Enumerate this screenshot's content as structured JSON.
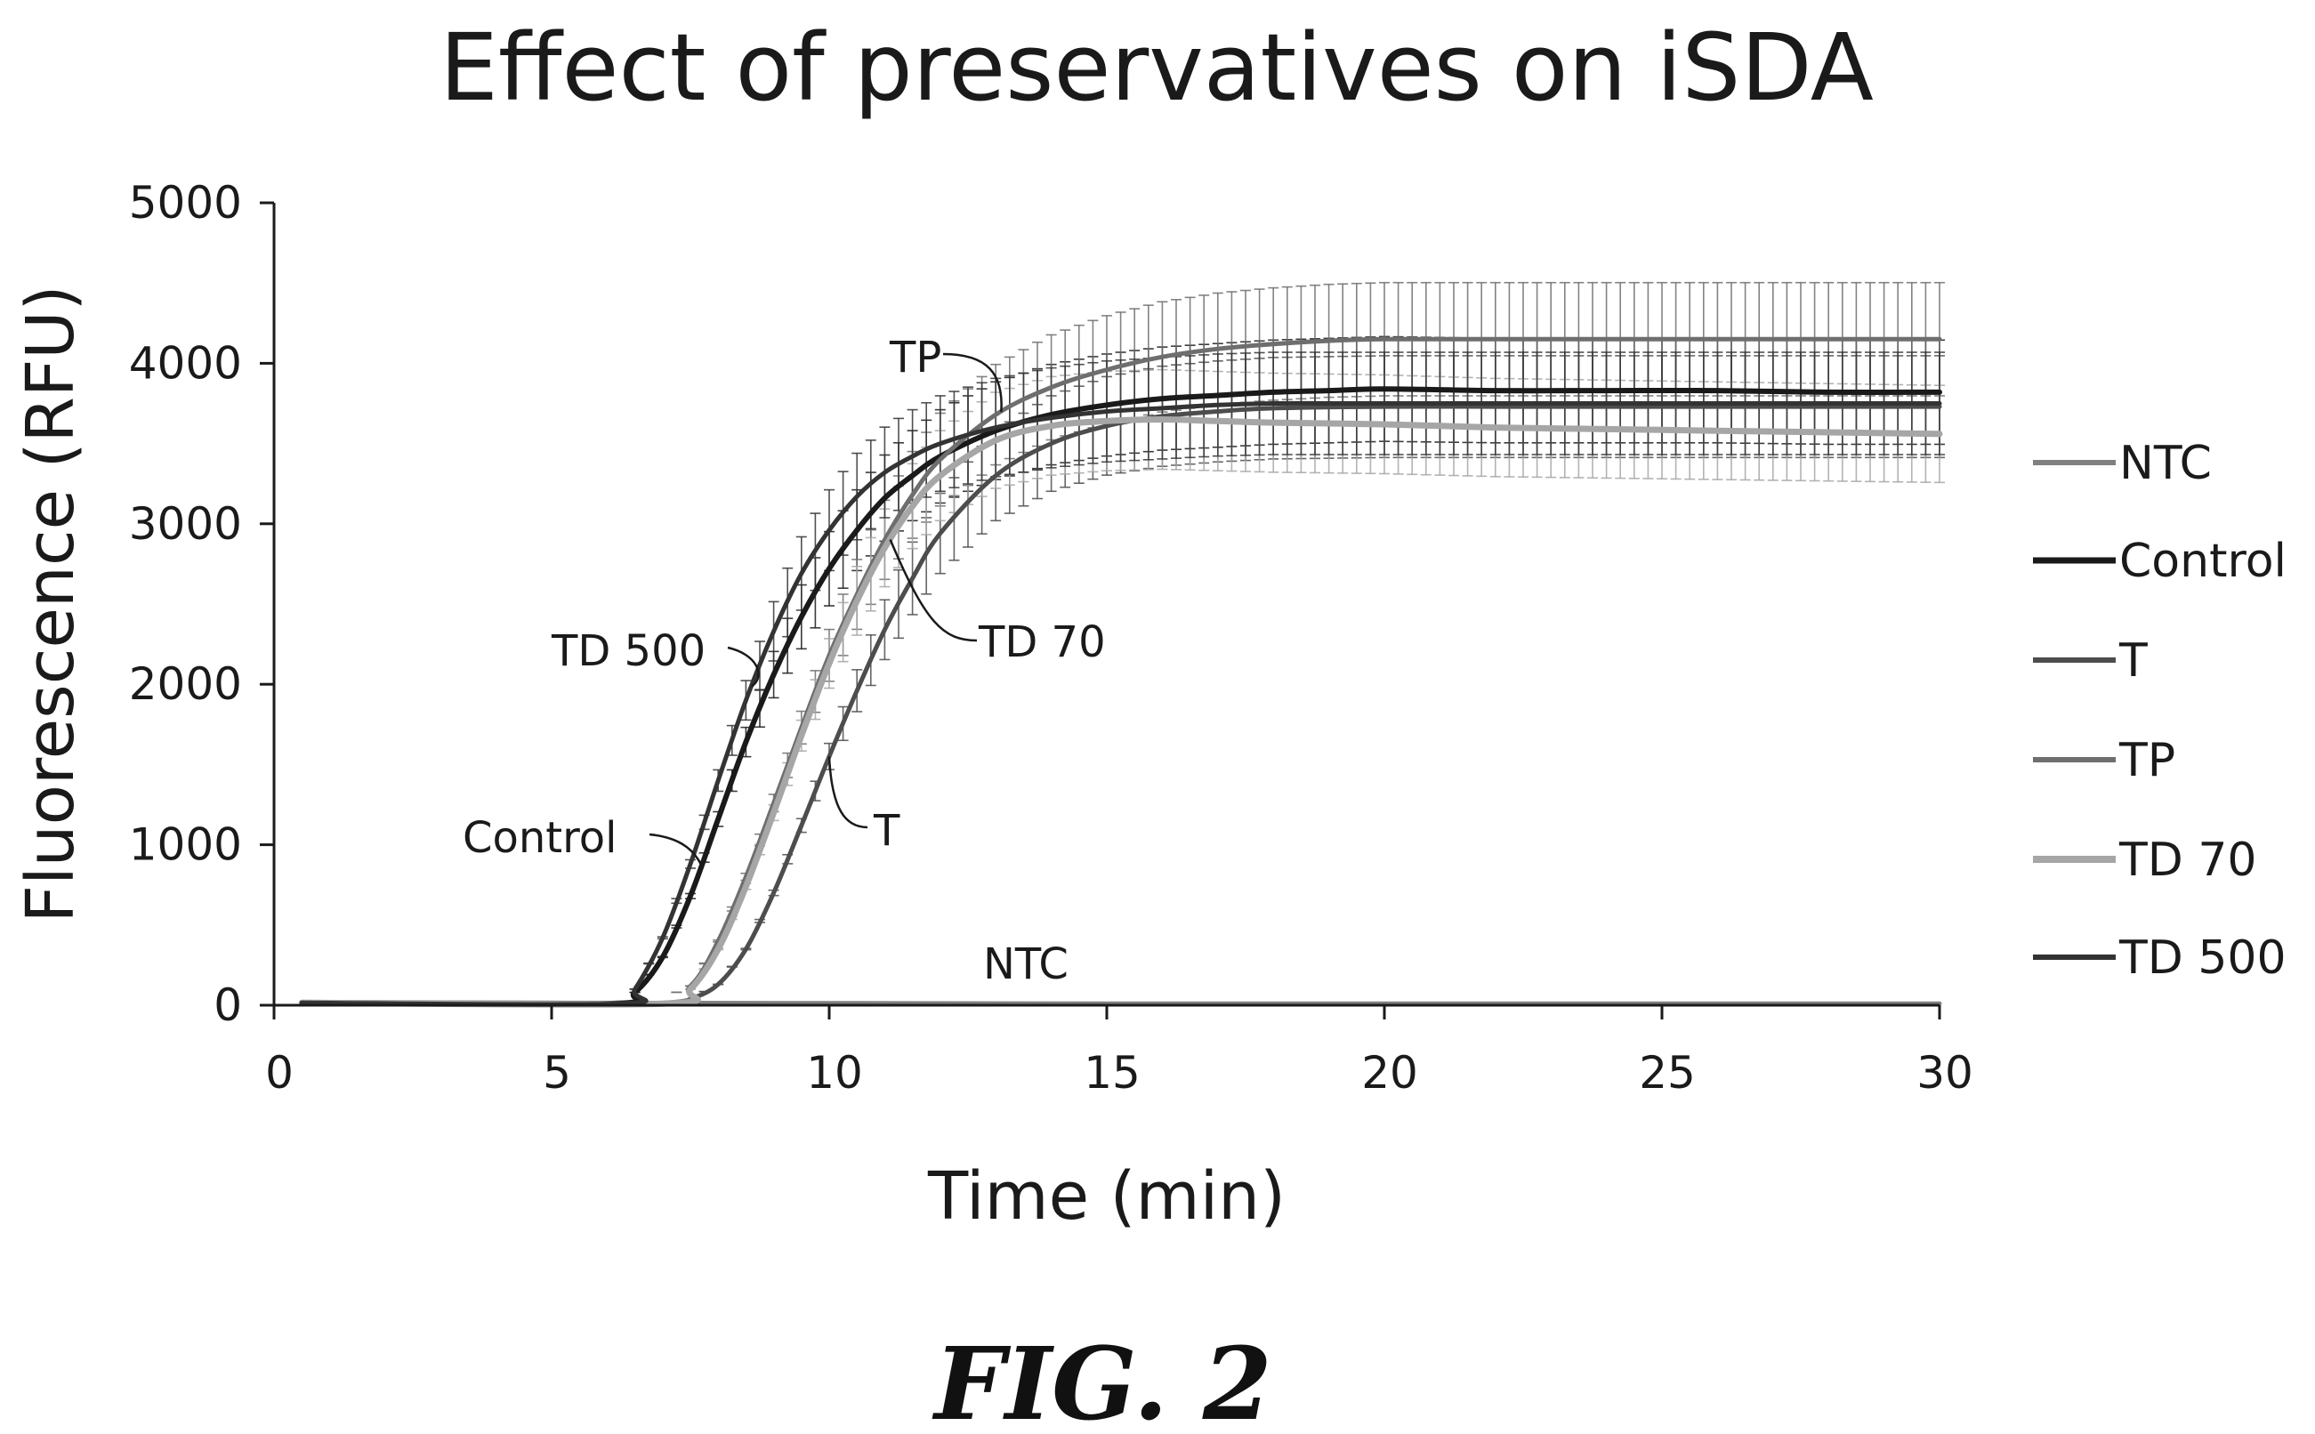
{
  "figure_label": "FIG. 2",
  "chart_data": {
    "type": "line",
    "title": "Effect of preservatives on iSDA",
    "xlabel": "Time (min)",
    "ylabel": "Fluorescence (RFU)",
    "xlim": [
      0,
      30
    ],
    "ylim": [
      0,
      5000
    ],
    "xticks": [
      0,
      5,
      10,
      15,
      20,
      25,
      30
    ],
    "yticks": [
      0,
      1000,
      2000,
      3000,
      4000,
      5000
    ],
    "grid": false,
    "legend_position": "right",
    "error_bars": true,
    "colors": {
      "NTC": "#808080",
      "Control": "#1a1a1a",
      "T": "#4d4d4d",
      "TP": "#6e6e6e",
      "TD 70": "#a6a6a6",
      "TD 500": "#333333"
    },
    "series": [
      {
        "name": "NTC",
        "x": [
          0.5,
          5,
          10,
          15,
          20,
          25,
          30
        ],
        "y": [
          20,
          15,
          12,
          10,
          10,
          10,
          10
        ]
      },
      {
        "name": "Control",
        "x": [
          6,
          6.5,
          7,
          7.5,
          8,
          8.5,
          9,
          9.5,
          10,
          10.5,
          11,
          11.5,
          12,
          13,
          14,
          15,
          16,
          17,
          18,
          19,
          20,
          22,
          24,
          26,
          28,
          30
        ],
        "y": [
          10,
          80,
          300,
          680,
          1160,
          1640,
          2060,
          2420,
          2720,
          2960,
          3160,
          3300,
          3420,
          3580,
          3680,
          3740,
          3780,
          3800,
          3820,
          3830,
          3840,
          3830,
          3830,
          3830,
          3820,
          3820
        ]
      },
      {
        "name": "T",
        "x": [
          7,
          7.5,
          8,
          8.5,
          9,
          9.5,
          10,
          10.5,
          11,
          11.5,
          12,
          13,
          14,
          15,
          16,
          17,
          18,
          20,
          22,
          24,
          26,
          28,
          30
        ],
        "y": [
          10,
          40,
          130,
          350,
          700,
          1120,
          1550,
          1960,
          2340,
          2660,
          2940,
          3300,
          3500,
          3610,
          3670,
          3700,
          3720,
          3730,
          3730,
          3730,
          3730,
          3730,
          3730
        ]
      },
      {
        "name": "TP",
        "x": [
          6.8,
          7.5,
          8,
          8.5,
          9,
          9.5,
          10,
          10.5,
          11,
          11.5,
          12,
          13,
          14,
          15,
          16,
          17,
          18,
          19,
          20,
          22,
          24,
          26,
          28,
          30
        ],
        "y": [
          10,
          120,
          400,
          800,
          1260,
          1730,
          2180,
          2560,
          2900,
          3180,
          3400,
          3680,
          3850,
          3960,
          4040,
          4090,
          4120,
          4140,
          4150,
          4150,
          4150,
          4150,
          4150,
          4150
        ]
      },
      {
        "name": "TD 70",
        "x": [
          7,
          7.5,
          8,
          8.5,
          9,
          9.5,
          10,
          10.5,
          11,
          11.5,
          12,
          13,
          14,
          15,
          16,
          17,
          18,
          20,
          22,
          24,
          26,
          28,
          30
        ],
        "y": [
          10,
          100,
          350,
          740,
          1200,
          1680,
          2130,
          2520,
          2850,
          3110,
          3300,
          3520,
          3610,
          3640,
          3650,
          3640,
          3630,
          3620,
          3600,
          3590,
          3580,
          3570,
          3560
        ]
      },
      {
        "name": "TD 500",
        "x": [
          6.2,
          6.5,
          7,
          7.5,
          8,
          8.5,
          9,
          9.5,
          10,
          10.5,
          11,
          11.5,
          12,
          13,
          14,
          15,
          16,
          17,
          18,
          19,
          20,
          22,
          24,
          26,
          28,
          30
        ],
        "y": [
          10,
          100,
          420,
          880,
          1400,
          1900,
          2330,
          2690,
          2960,
          3170,
          3320,
          3420,
          3500,
          3600,
          3660,
          3700,
          3720,
          3740,
          3750,
          3750,
          3750,
          3750,
          3750,
          3750,
          3750,
          3750
        ]
      }
    ],
    "annotations": [
      {
        "text": "TP",
        "series": "TP"
      },
      {
        "text": "TD 500",
        "series": "TD 500"
      },
      {
        "text": "TD 70",
        "series": "TD 70"
      },
      {
        "text": "Control",
        "series": "Control"
      },
      {
        "text": "T",
        "series": "T"
      },
      {
        "text": "NTC",
        "series": "NTC"
      }
    ]
  }
}
